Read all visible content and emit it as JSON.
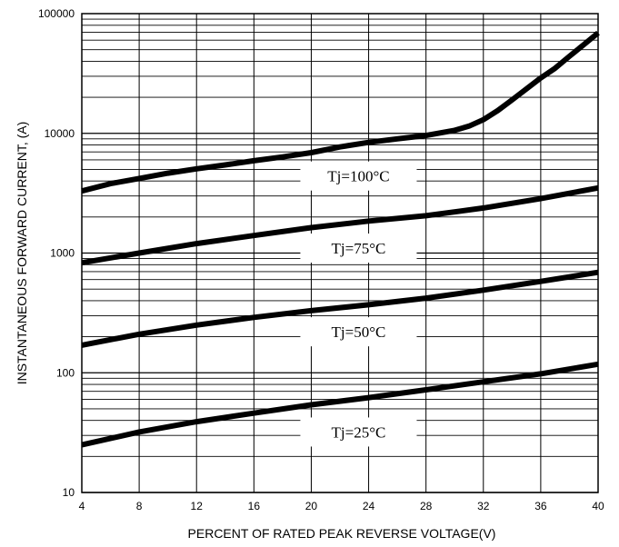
{
  "chart_data": {
    "type": "line",
    "title": "",
    "xlabel": "PERCENT OF RATED PEAK REVERSE VOLTAGE(V)",
    "ylabel": "INSTANTANEOUS FORWARD CURRENT, (A)",
    "xlim": [
      4,
      40
    ],
    "ylim": [
      10,
      100000
    ],
    "y_scale": "log",
    "x_ticks": [
      4,
      8,
      12,
      16,
      20,
      24,
      28,
      32,
      36,
      40
    ],
    "y_ticks": [
      10,
      100,
      1000,
      10000,
      100000
    ],
    "x_tick_labels": [
      "4",
      "8",
      "12",
      "16",
      "20",
      "24",
      "28",
      "32",
      "36",
      "40"
    ],
    "y_tick_labels": [
      "10",
      "100",
      "1000",
      "10000",
      "100000"
    ],
    "grid": true,
    "line_color": "#000000",
    "series": [
      {
        "name": "Tj=100°C",
        "x": [
          4,
          6,
          8,
          10,
          12,
          14,
          16,
          18,
          20,
          22,
          24,
          26,
          28,
          30,
          31,
          32,
          33,
          34,
          35,
          36,
          37,
          38,
          39,
          40
        ],
        "values": [
          3300,
          3800,
          4200,
          4650,
          5050,
          5450,
          5900,
          6350,
          6900,
          7700,
          8400,
          9000,
          9600,
          10600,
          11500,
          13000,
          15500,
          19000,
          23500,
          29000,
          35000,
          44000,
          55000,
          69000
        ]
      },
      {
        "name": "Tj=75°C",
        "x": [
          4,
          8,
          12,
          16,
          20,
          24,
          28,
          32,
          36,
          40
        ],
        "values": [
          830,
          1000,
          1200,
          1400,
          1630,
          1850,
          2050,
          2380,
          2850,
          3500
        ]
      },
      {
        "name": "Tj=50°C",
        "x": [
          4,
          8,
          12,
          16,
          20,
          24,
          28,
          32,
          36,
          40
        ],
        "values": [
          170,
          210,
          250,
          290,
          330,
          370,
          420,
          490,
          580,
          690
        ]
      },
      {
        "name": "Tj=25°C",
        "x": [
          4,
          8,
          12,
          16,
          20,
          24,
          28,
          32,
          36,
          40
        ],
        "values": [
          25,
          32,
          39,
          46,
          54,
          62,
          72,
          84,
          98,
          118
        ]
      }
    ],
    "curve_labels": [
      {
        "text": "Tj=100°C",
        "x": 20,
        "y": 4400
      },
      {
        "text": "Tj=75°C",
        "x": 20,
        "y": 1100
      },
      {
        "text": "Tj=50°C",
        "x": 20,
        "y": 220
      },
      {
        "text": "Tj=25°C",
        "x": 20,
        "y": 32
      }
    ]
  }
}
